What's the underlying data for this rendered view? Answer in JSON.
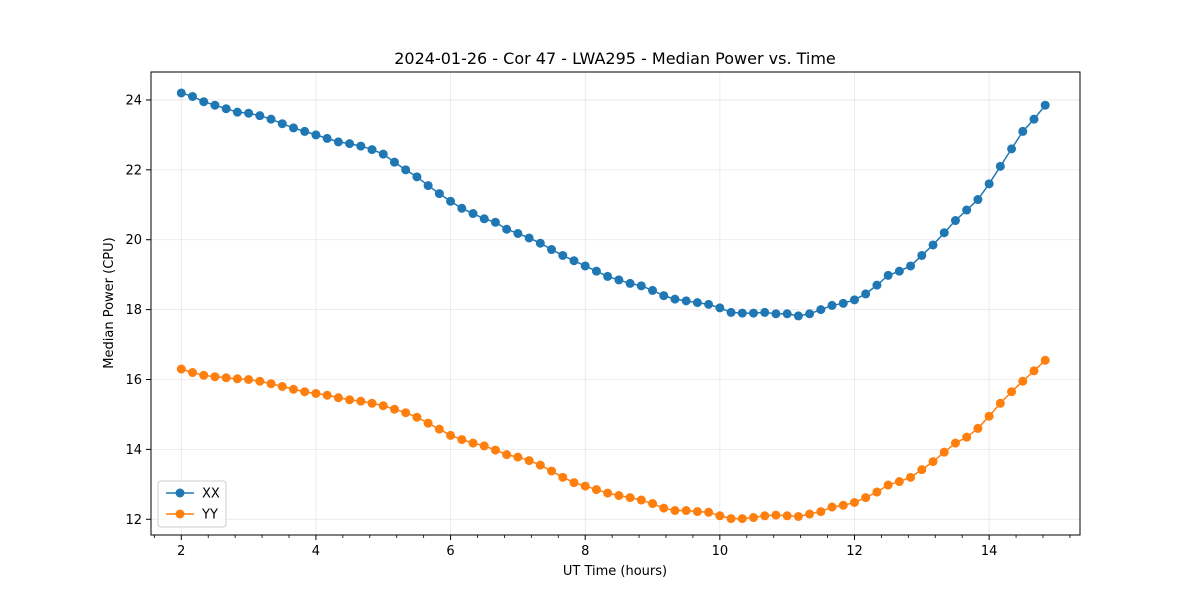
{
  "chart_data": {
    "type": "line",
    "title": "2024-01-26 - Cor 47 - LWA295 - Median Power vs. Time",
    "xlabel": "UT Time (hours)",
    "ylabel": "Median Power (CPU)",
    "xlim": [
      1.55,
      15.35
    ],
    "ylim": [
      11.55,
      24.8
    ],
    "xticks": [
      2,
      4,
      6,
      8,
      10,
      12,
      14
    ],
    "yticks": [
      12,
      14,
      16,
      18,
      20,
      22,
      24
    ],
    "xtick_labels": [
      "2",
      "4",
      "6",
      "8",
      "10",
      "12",
      "14"
    ],
    "ytick_labels": [
      "12",
      "14",
      "16",
      "18",
      "20",
      "22",
      "24"
    ],
    "grid": true,
    "legend_position": "lower-left",
    "x": [
      2.0,
      2.1667,
      2.3333,
      2.5,
      2.6667,
      2.8333,
      3.0,
      3.1667,
      3.3333,
      3.5,
      3.6667,
      3.8333,
      4.0,
      4.1667,
      4.3333,
      4.5,
      4.6667,
      4.8333,
      5.0,
      5.1667,
      5.3333,
      5.5,
      5.6667,
      5.8333,
      6.0,
      6.1667,
      6.3333,
      6.5,
      6.6667,
      6.8333,
      7.0,
      7.1667,
      7.3333,
      7.5,
      7.6667,
      7.8333,
      8.0,
      8.1667,
      8.3333,
      8.5,
      8.6667,
      8.8333,
      9.0,
      9.1667,
      9.3333,
      9.5,
      9.6667,
      9.8333,
      10.0,
      10.1667,
      10.3333,
      10.5,
      10.6667,
      10.8333,
      11.0,
      11.1667,
      11.3333,
      11.5,
      11.6667,
      11.8333,
      12.0,
      12.1667,
      12.3333,
      12.5,
      12.6667,
      12.8333,
      13.0,
      13.1667,
      13.3333,
      13.5,
      13.6667,
      13.8333,
      14.0,
      14.1667,
      14.3333,
      14.5,
      14.6667,
      14.8333
    ],
    "series": [
      {
        "name": "XX",
        "color": "#1f77b4",
        "values": [
          24.2,
          24.1,
          23.95,
          23.85,
          23.75,
          23.65,
          23.62,
          23.55,
          23.45,
          23.32,
          23.2,
          23.1,
          23.0,
          22.9,
          22.8,
          22.75,
          22.68,
          22.58,
          22.45,
          22.22,
          22.0,
          21.8,
          21.55,
          21.32,
          21.1,
          20.9,
          20.75,
          20.6,
          20.5,
          20.3,
          20.18,
          20.05,
          19.9,
          19.72,
          19.55,
          19.4,
          19.25,
          19.1,
          18.95,
          18.85,
          18.75,
          18.68,
          18.55,
          18.4,
          18.3,
          18.25,
          18.2,
          18.15,
          18.05,
          17.92,
          17.9,
          17.9,
          17.92,
          17.88,
          17.88,
          17.82,
          17.88,
          18.0,
          18.12,
          18.18,
          18.28,
          18.45,
          18.7,
          18.98,
          19.1,
          19.25,
          19.55,
          19.85,
          20.2,
          20.55,
          20.85,
          21.15,
          21.6,
          22.1,
          22.6,
          23.1,
          23.45,
          23.85
        ]
      },
      {
        "name": "YY",
        "color": "#ff7f0e",
        "values": [
          16.3,
          16.2,
          16.12,
          16.08,
          16.05,
          16.02,
          16.0,
          15.95,
          15.88,
          15.8,
          15.72,
          15.65,
          15.6,
          15.55,
          15.48,
          15.42,
          15.38,
          15.32,
          15.25,
          15.15,
          15.05,
          14.92,
          14.75,
          14.58,
          14.4,
          14.28,
          14.18,
          14.1,
          13.98,
          13.85,
          13.78,
          13.68,
          13.55,
          13.38,
          13.2,
          13.05,
          12.95,
          12.85,
          12.75,
          12.68,
          12.62,
          12.55,
          12.45,
          12.32,
          12.25,
          12.25,
          12.22,
          12.2,
          12.1,
          12.02,
          12.02,
          12.05,
          12.1,
          12.12,
          12.1,
          12.08,
          12.15,
          12.22,
          12.35,
          12.4,
          12.48,
          12.62,
          12.78,
          12.98,
          13.08,
          13.2,
          13.42,
          13.65,
          13.92,
          14.18,
          14.35,
          14.6,
          14.95,
          15.32,
          15.65,
          15.95,
          16.25,
          16.55
        ]
      }
    ]
  }
}
